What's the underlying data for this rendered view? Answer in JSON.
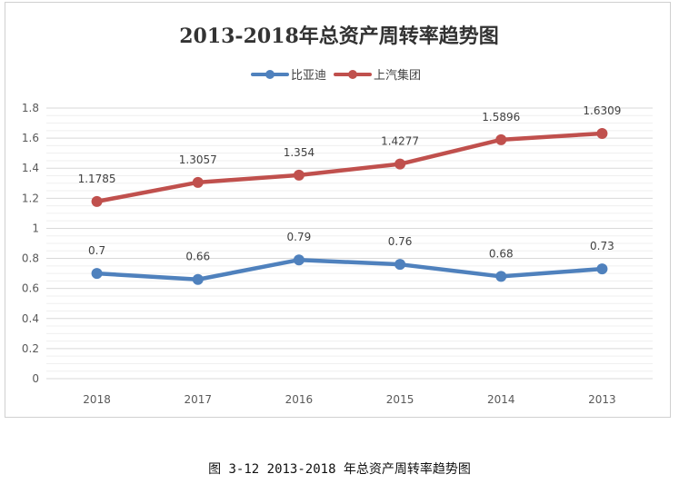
{
  "chart_data": {
    "type": "line",
    "title": "2013-2018年总资产周转率趋势图",
    "categories": [
      "2018",
      "2017",
      "2016",
      "2015",
      "2014",
      "2013"
    ],
    "series": [
      {
        "name": "比亚迪",
        "color": "#4f81bd",
        "values": [
          0.7,
          0.66,
          0.79,
          0.76,
          0.68,
          0.73
        ],
        "labels": [
          "0.7",
          "0.66",
          "0.79",
          "0.76",
          "0.68",
          "0.73"
        ]
      },
      {
        "name": "上汽集团",
        "color": "#c0504d",
        "values": [
          1.1785,
          1.3057,
          1.354,
          1.4277,
          1.5896,
          1.6309
        ],
        "labels": [
          "1.1785",
          "1.3057",
          "1.354",
          "1.4277",
          "1.5896",
          "1.6309"
        ]
      }
    ],
    "ylim": [
      0,
      1.8
    ],
    "yticks": [
      "0",
      "0.2",
      "0.4",
      "0.6",
      "0.8",
      "1",
      "1.2",
      "1.4",
      "1.6",
      "1.8"
    ],
    "legend_position": "top",
    "grid": true
  },
  "caption": "图 3-12 2013-2018 年总资产周转率趋势图"
}
